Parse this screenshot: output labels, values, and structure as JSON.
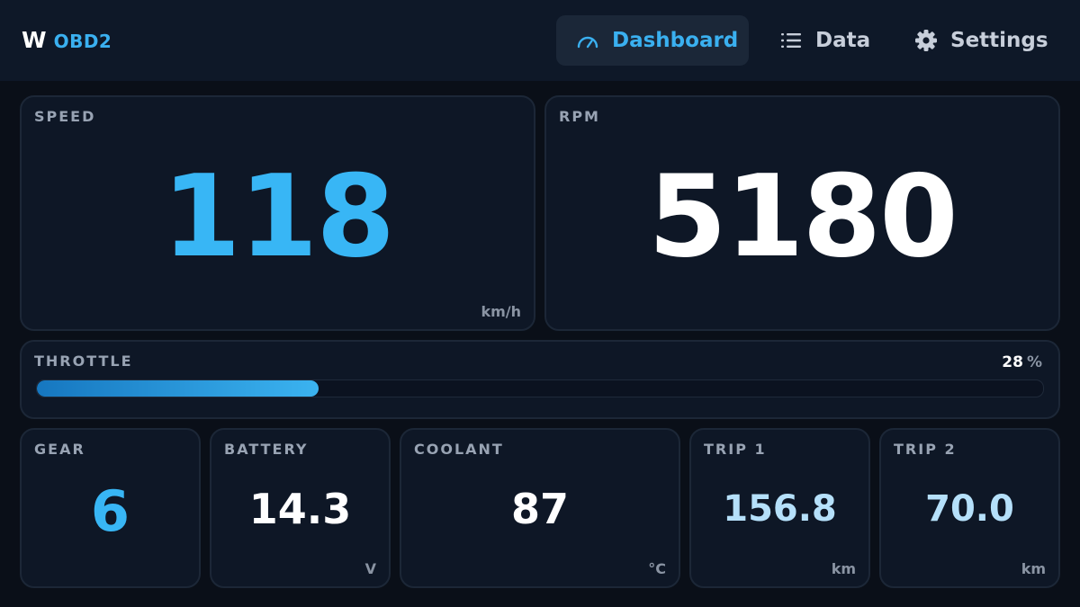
{
  "app": {
    "logo_letter": "W",
    "logo_text": "OBD2"
  },
  "nav": {
    "dashboard": {
      "label": "Dashboard",
      "icon": "gauge-icon"
    },
    "data": {
      "label": "Data",
      "icon": "list-icon"
    },
    "settings": {
      "label": "Settings",
      "icon": "gear-icon"
    }
  },
  "speed": {
    "label": "SPEED",
    "value": "118",
    "unit": "km/h"
  },
  "rpm": {
    "label": "RPM",
    "value": "5180"
  },
  "throttle": {
    "label": "THROTTLE",
    "value": "28",
    "unit": "%",
    "percent": 28
  },
  "gear": {
    "label": "GEAR",
    "value": "6"
  },
  "battery": {
    "label": "BATTERY",
    "value": "14.3",
    "unit": "V"
  },
  "coolant": {
    "label": "COOLANT",
    "value": "87",
    "unit": "°C"
  },
  "trip1": {
    "label": "TRIP 1",
    "value": "156.8",
    "unit": "km"
  },
  "trip2": {
    "label": "TRIP 2",
    "value": "70.0",
    "unit": "km"
  },
  "colors": {
    "accent": "#38b6f5",
    "background": "#0a0f18",
    "panel": "#0e1726",
    "trip_value": "#b5e0fa"
  }
}
